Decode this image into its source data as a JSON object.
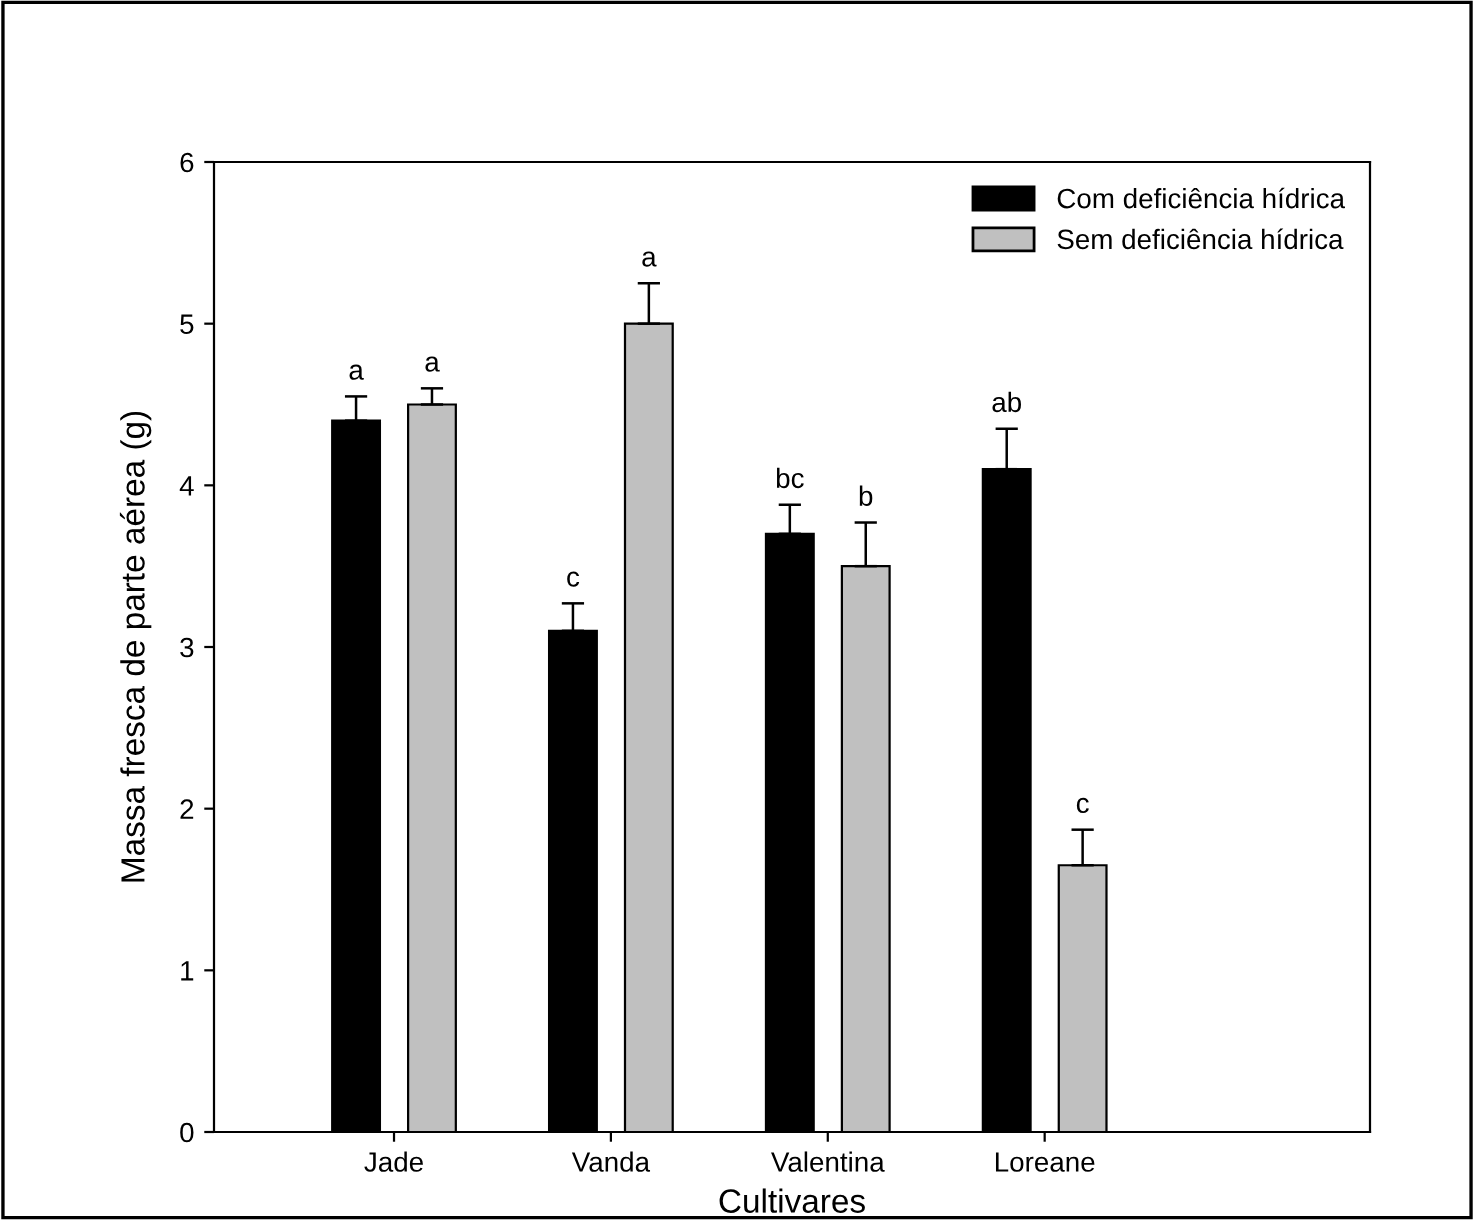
{
  "chart_data": {
    "type": "bar",
    "xlabel": "Cultivares",
    "ylabel": "Massa fresca de parte aérea (g)",
    "categories": [
      "Jade",
      "Vanda",
      "Valentina",
      "Loreane"
    ],
    "series": [
      {
        "name": "Com deficiência hídrica",
        "color": "#000000",
        "values": [
          4.4,
          3.1,
          3.7,
          4.1
        ],
        "value_labels": [
          "a",
          "c",
          "bc",
          "ab"
        ],
        "errors": [
          [
            4.4,
            4.55
          ],
          [
            3.1,
            3.27
          ],
          [
            3.7,
            3.88
          ],
          [
            4.1,
            4.35
          ]
        ]
      },
      {
        "name": "Sem deficiência hídrica",
        "color": "#c0c0c0",
        "values": [
          4.5,
          5.0,
          3.5,
          1.65
        ],
        "value_labels": [
          "a",
          "a",
          "b",
          "c"
        ],
        "errors": [
          [
            4.5,
            4.6
          ],
          [
            5.0,
            5.25
          ],
          [
            3.5,
            3.77
          ],
          [
            1.65,
            1.87
          ]
        ]
      }
    ],
    "ylim": [
      0,
      6
    ],
    "yticks": [
      0,
      1,
      2,
      3,
      4,
      5,
      6
    ],
    "legend": "top right",
    "grid": false
  }
}
